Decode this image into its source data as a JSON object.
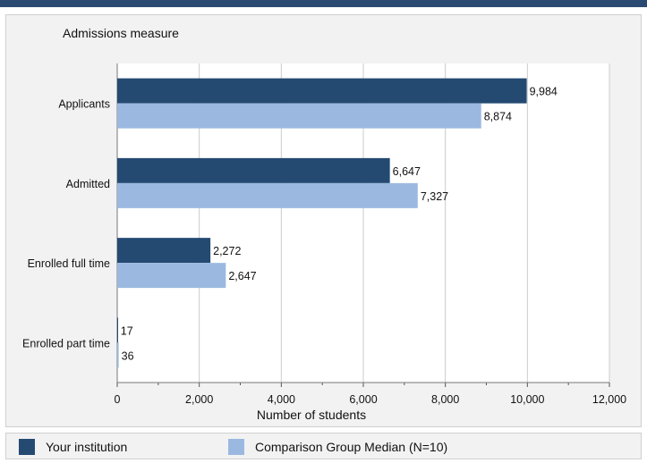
{
  "chart_data": {
    "type": "bar",
    "orientation": "horizontal",
    "title": "Admissions measure",
    "xlabel": "Number of students",
    "ylabel": "",
    "categories": [
      "Applicants",
      "Admitted",
      "Enrolled full time",
      "Enrolled part time"
    ],
    "series": [
      {
        "name": "Your institution",
        "color": "#244a72",
        "values": [
          9984,
          6647,
          2272,
          17
        ]
      },
      {
        "name": "Comparison Group Median (N=10)",
        "color": "#9bb9e0",
        "values": [
          8874,
          7327,
          2647,
          36
        ]
      }
    ],
    "value_labels": [
      [
        "9,984",
        "6,647",
        "2,272",
        "17"
      ],
      [
        "8,874",
        "7,327",
        "2,647",
        "36"
      ]
    ],
    "xlim": [
      0,
      12000
    ],
    "xticks": [
      0,
      2000,
      4000,
      6000,
      8000,
      10000,
      12000
    ],
    "xtick_labels": [
      "0",
      "2,000",
      "4,000",
      "6,000",
      "8,000",
      "10,000",
      "12,000"
    ],
    "grid": true,
    "legend_position": "bottom"
  },
  "colors": {
    "accent_bar": "#2a4a72",
    "panel_bg": "#f2f2f2",
    "plot_bg": "#ffffff",
    "grid": "#cccccc"
  }
}
